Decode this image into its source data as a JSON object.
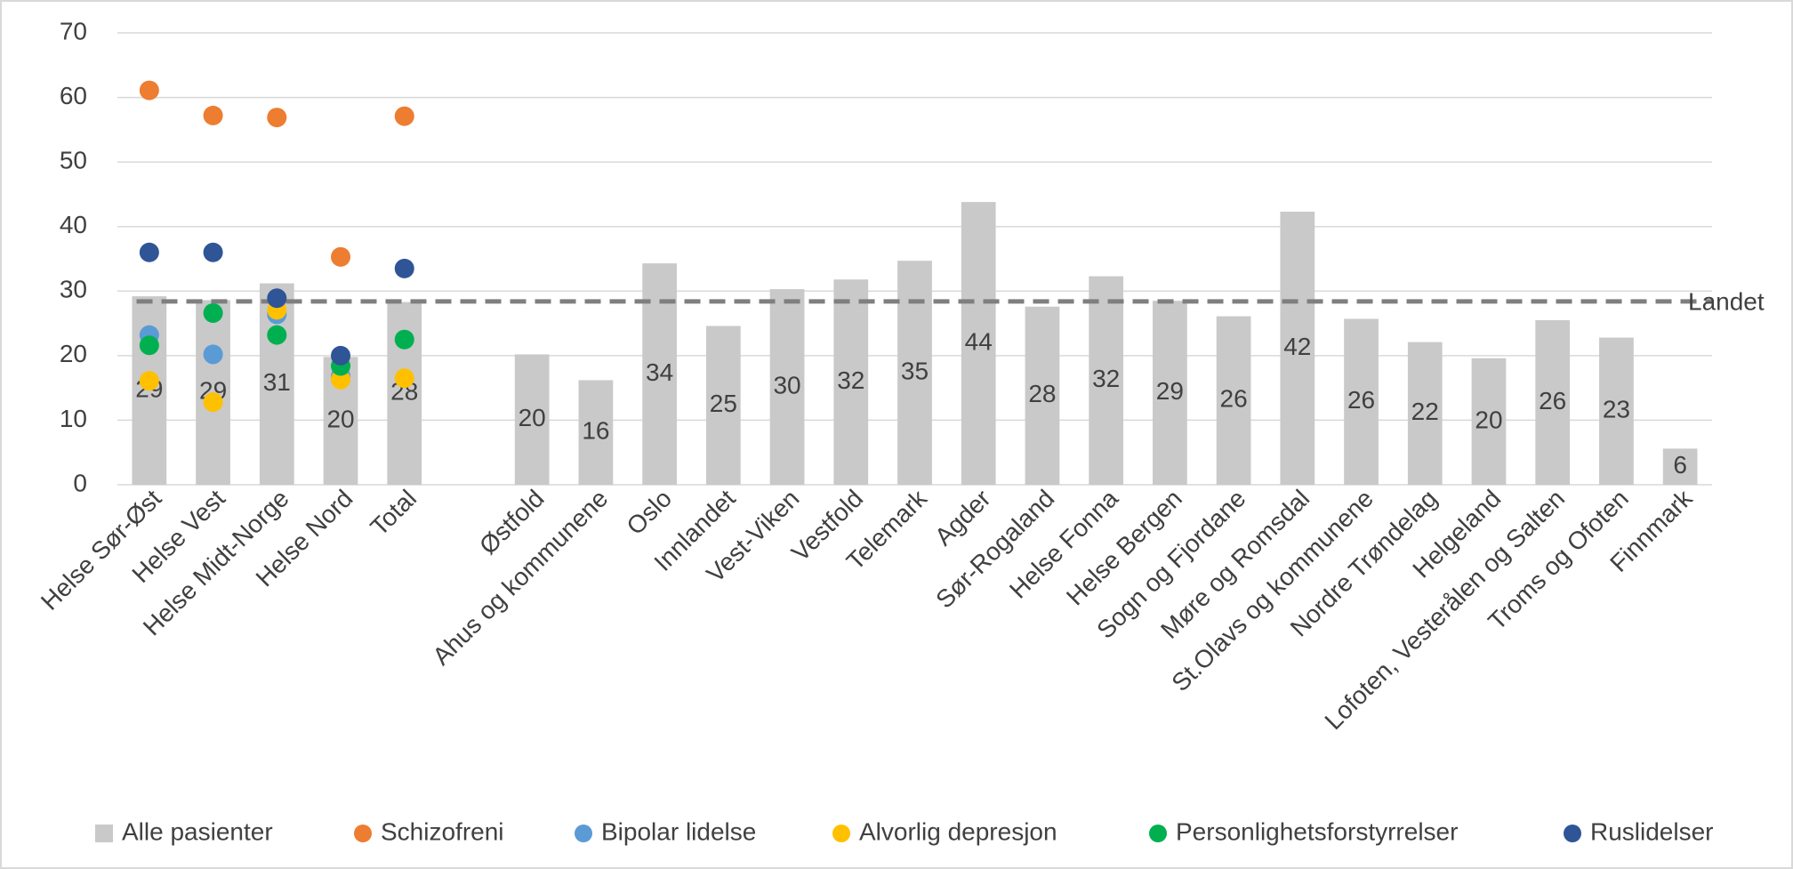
{
  "chart_data": {
    "type": "bar",
    "categories": [
      "Helse Sør-Øst",
      "Helse Vest",
      "Helse Midt-Norge",
      "Helse Nord",
      "Total",
      null,
      "Østfold",
      "Ahus og kommunene",
      "Oslo",
      "Innlandet",
      "Vest-Viken",
      "Vestfold",
      "Telemark",
      "Agder",
      "Sør-Rogaland",
      "Helse Fonna",
      "Helse Bergen",
      "Sogn og Fjordane",
      "Møre og Romsdal",
      "St.Olavs og kommunene",
      "Nordre Trøndelag",
      "Helgeland",
      "Lofoten, Vesterålen og Salten",
      "Troms og Ofoten",
      "Finnmark"
    ],
    "series": [
      {
        "name": "Alle pasienter",
        "type": "bar",
        "color": "#c9c9c9",
        "values": [
          29.2,
          28.6,
          31.2,
          19.8,
          28.3,
          null,
          20.2,
          16.2,
          34.3,
          24.6,
          30.3,
          31.8,
          34.7,
          43.8,
          27.6,
          32.3,
          28.5,
          26.1,
          42.3,
          25.7,
          22.1,
          19.6,
          25.5,
          22.8,
          5.6
        ],
        "value_labels": [
          "29",
          "29",
          "31",
          "20",
          "28",
          null,
          "20",
          "16",
          "34",
          "25",
          "30",
          "32",
          "35",
          "44",
          "28",
          "32",
          "29",
          "26",
          "42",
          "26",
          "22",
          "20",
          "26",
          "23",
          "6"
        ]
      },
      {
        "name": "Schizofreni",
        "type": "scatter",
        "color": "#ed7d31",
        "values": [
          61.1,
          57.2,
          56.9,
          35.3,
          57.1,
          null,
          null,
          null,
          null,
          null,
          null,
          null,
          null,
          null,
          null,
          null,
          null,
          null,
          null,
          null,
          null,
          null,
          null,
          null,
          null
        ]
      },
      {
        "name": "Bipolar lidelse",
        "type": "scatter",
        "color": "#5b9bd5",
        "values": [
          23.2,
          20.2,
          26.4,
          16.8,
          null,
          null,
          null,
          null,
          null,
          null,
          null,
          null,
          null,
          null,
          null,
          null,
          null,
          null,
          null,
          null,
          null,
          null,
          null,
          null,
          null
        ]
      },
      {
        "name": "Alvorlig depresjon",
        "type": "scatter",
        "color": "#ffc000",
        "values": [
          16.1,
          12.8,
          27.1,
          16.3,
          16.5,
          null,
          null,
          null,
          null,
          null,
          null,
          null,
          null,
          null,
          null,
          null,
          null,
          null,
          null,
          null,
          null,
          null,
          null,
          null,
          null
        ]
      },
      {
        "name": "Personlighetsforstyrrelser",
        "type": "scatter",
        "color": "#00b050",
        "values": [
          21.6,
          26.6,
          23.2,
          18.4,
          22.5,
          null,
          null,
          null,
          null,
          null,
          null,
          null,
          null,
          null,
          null,
          null,
          null,
          null,
          null,
          null,
          null,
          null,
          null,
          null,
          null
        ]
      },
      {
        "name": "Ruslidelser",
        "type": "scatter",
        "color": "#2f5597",
        "values": [
          36.0,
          36.0,
          28.9,
          20.0,
          33.5,
          null,
          null,
          null,
          null,
          null,
          null,
          null,
          null,
          null,
          null,
          null,
          null,
          null,
          null,
          null,
          null,
          null,
          null,
          null,
          null
        ]
      }
    ],
    "reference_line": {
      "value": 28.4,
      "label": "Landet",
      "color": "#7f7f7f"
    },
    "ylim": [
      0,
      70
    ],
    "yticks": [
      0,
      10,
      20,
      30,
      40,
      50,
      60,
      70
    ],
    "grid": true,
    "legend": "bottom"
  }
}
